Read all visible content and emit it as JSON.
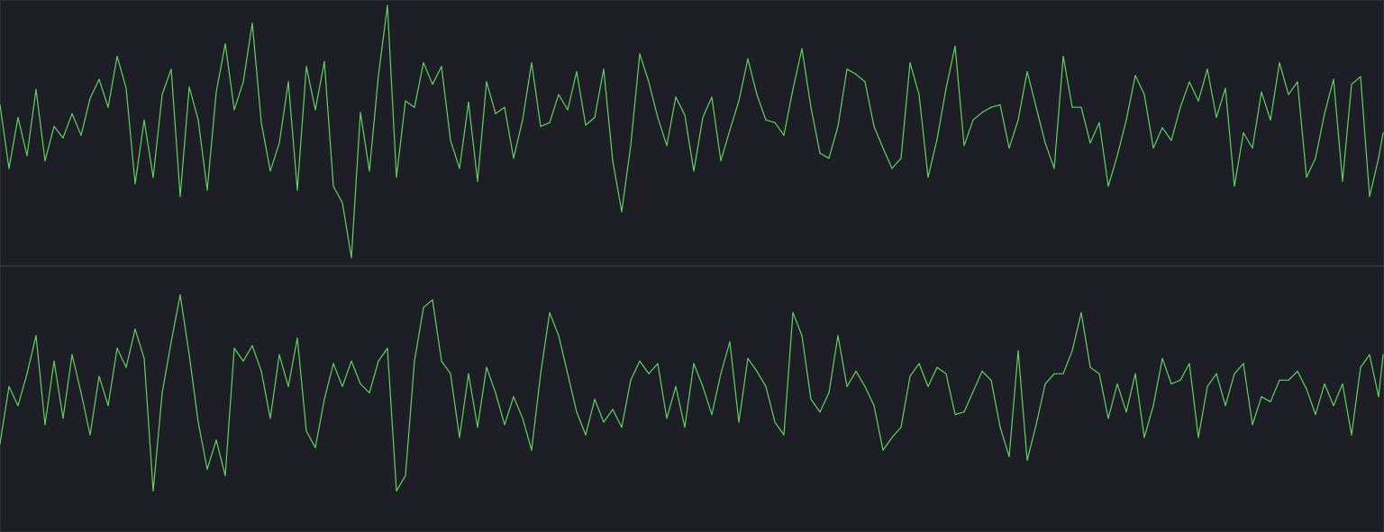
{
  "colors": {
    "background": "#1e1f26",
    "trace": "#5fd35f",
    "divider": "#3a3d35",
    "border": "#2c2e33"
  },
  "chart_data": [
    {
      "type": "line",
      "title": "",
      "xlabel": "",
      "ylabel": "",
      "grid": false,
      "legend": "none",
      "x": [
        0,
        10,
        20,
        30,
        40,
        50,
        60,
        70,
        80,
        90,
        100,
        110,
        120,
        130,
        140,
        150,
        160,
        170,
        180,
        190,
        200,
        210,
        220,
        230,
        240,
        250,
        260,
        270,
        280,
        290,
        300,
        310,
        320,
        330,
        340,
        350,
        360,
        370,
        380,
        390,
        400,
        410,
        420,
        430,
        440,
        450,
        460,
        470,
        480,
        490,
        500,
        510,
        520,
        530,
        540,
        550,
        560,
        570,
        580,
        590,
        600,
        610,
        620,
        630,
        640,
        650,
        660,
        670,
        680,
        690,
        700,
        710,
        720,
        730,
        740,
        750,
        760,
        770,
        780,
        790,
        800,
        810,
        820,
        830,
        840,
        850,
        860,
        870,
        880,
        890,
        900,
        910,
        920,
        930,
        940,
        950,
        960,
        970,
        980,
        990,
        1000,
        1010,
        1020,
        1030,
        1040,
        1050,
        1060,
        1070,
        1080,
        1090,
        1100,
        1110,
        1120,
        1130,
        1140,
        1150,
        1160,
        1170,
        1180,
        1190,
        1200,
        1210,
        1220,
        1230,
        1240,
        1250,
        1260,
        1270,
        1280,
        1290,
        1300,
        1310,
        1320,
        1330,
        1340,
        1350,
        1360,
        1370,
        1380,
        1390,
        1400,
        1410,
        1420,
        1430,
        1440,
        1450,
        1460,
        1470,
        1480,
        1490,
        1500,
        1510,
        1520,
        1530,
        1535
      ],
      "ylim": [
        -1,
        1
      ],
      "series": [
        {
          "values": [
            0.22,
            -0.28,
            0.12,
            -0.18,
            0.34,
            -0.22,
            0.05,
            -0.04,
            0.15,
            -0.02,
            0.27,
            0.42,
            0.2,
            0.6,
            0.35,
            -0.4,
            0.1,
            -0.35,
            0.3,
            0.5,
            -0.5,
            0.36,
            0.1,
            -0.45,
            0.32,
            0.7,
            0.18,
            0.4,
            0.86,
            0.08,
            -0.3,
            -0.08,
            0.4,
            -0.45,
            0.52,
            0.18,
            0.56,
            -0.42,
            -0.55,
            -0.98,
            0.16,
            -0.3,
            0.45,
            1.0,
            -0.35,
            0.25,
            0.2,
            0.55,
            0.38,
            0.52,
            -0.06,
            -0.28,
            0.24,
            -0.38,
            0.4,
            0.15,
            0.2,
            -0.2,
            0.1,
            0.55,
            0.05,
            0.08,
            0.3,
            0.18,
            0.48,
            0.06,
            0.12,
            0.5,
            -0.22,
            -0.62,
            -0.1,
            0.62,
            0.4,
            0.12,
            -0.1,
            0.28,
            0.14,
            -0.3,
            0.12,
            0.28,
            -0.22,
            0.02,
            0.25,
            0.58,
            0.3,
            0.1,
            0.08,
            -0.02,
            0.34,
            0.66,
            0.2,
            -0.16,
            -0.2,
            0.05,
            0.5,
            0.46,
            0.4,
            0.05,
            -0.12,
            -0.28,
            -0.2,
            0.55,
            0.3,
            -0.35,
            -0.05,
            0.35,
            0.68,
            -0.1,
            0.1,
            0.16,
            0.2,
            0.22,
            -0.12,
            0.1,
            0.48,
            0.2,
            -0.08,
            -0.28,
            0.6,
            0.2,
            0.2,
            -0.08,
            0.08,
            -0.42,
            -0.18,
            0.1,
            0.45,
            0.3,
            -0.12,
            0.04,
            -0.06,
            0.2,
            0.4,
            0.25,
            0.5,
            0.12,
            0.35,
            -0.42,
            0.0,
            -0.12,
            0.32,
            0.1,
            0.55,
            0.3,
            0.4,
            -0.35,
            -0.2,
            0.15,
            0.42,
            -0.38,
            0.38,
            0.44,
            -0.5,
            -0.2,
            0.0
          ]
        }
      ]
    },
    {
      "type": "line",
      "title": "",
      "xlabel": "",
      "ylabel": "",
      "grid": false,
      "legend": "none",
      "x": [
        0,
        10,
        20,
        30,
        40,
        50,
        60,
        70,
        80,
        90,
        100,
        110,
        120,
        130,
        140,
        150,
        160,
        170,
        180,
        190,
        200,
        210,
        220,
        230,
        240,
        250,
        260,
        270,
        280,
        290,
        300,
        310,
        320,
        330,
        340,
        350,
        360,
        370,
        380,
        390,
        400,
        410,
        420,
        430,
        440,
        450,
        460,
        470,
        480,
        490,
        500,
        510,
        520,
        530,
        540,
        550,
        560,
        570,
        580,
        590,
        600,
        610,
        620,
        630,
        640,
        650,
        660,
        670,
        680,
        690,
        700,
        710,
        720,
        730,
        740,
        750,
        760,
        770,
        780,
        790,
        800,
        810,
        820,
        830,
        840,
        850,
        860,
        870,
        880,
        890,
        900,
        910,
        920,
        930,
        940,
        950,
        960,
        970,
        980,
        990,
        1000,
        1010,
        1020,
        1030,
        1040,
        1050,
        1060,
        1070,
        1080,
        1090,
        1100,
        1110,
        1120,
        1130,
        1140,
        1150,
        1160,
        1170,
        1180,
        1190,
        1200,
        1210,
        1220,
        1230,
        1240,
        1250,
        1260,
        1270,
        1280,
        1290,
        1300,
        1310,
        1320,
        1330,
        1340,
        1350,
        1360,
        1370,
        1380,
        1390,
        1400,
        1410,
        1420,
        1430,
        1440,
        1450,
        1460,
        1470,
        1480,
        1490,
        1500,
        1510,
        1520,
        1530,
        1535
      ],
      "ylim": [
        -1,
        1
      ],
      "series": [
        {
          "values": [
            -0.35,
            0.1,
            -0.05,
            0.2,
            0.5,
            -0.2,
            0.3,
            -0.15,
            0.35,
            0.05,
            -0.28,
            0.18,
            -0.05,
            0.4,
            0.25,
            0.55,
            0.32,
            -0.72,
            0.05,
            0.45,
            0.82,
            0.35,
            -0.18,
            -0.55,
            -0.32,
            -0.6,
            0.4,
            0.3,
            0.42,
            0.22,
            -0.15,
            0.35,
            0.1,
            0.48,
            -0.25,
            -0.38,
            0.0,
            0.28,
            0.1,
            0.3,
            0.12,
            0.05,
            0.3,
            0.4,
            -0.72,
            -0.6,
            0.3,
            0.72,
            0.78,
            0.3,
            0.2,
            -0.3,
            0.2,
            -0.22,
            0.25,
            0.05,
            -0.2,
            0.02,
            -0.15,
            -0.4,
            0.2,
            0.68,
            0.5,
            0.2,
            -0.1,
            -0.28,
            0.0,
            -0.18,
            -0.08,
            -0.22,
            0.15,
            0.3,
            0.2,
            0.28,
            -0.15,
            0.1,
            -0.22,
            0.28,
            0.1,
            -0.12,
            0.2,
            0.45,
            -0.18,
            0.32,
            0.22,
            0.1,
            -0.18,
            -0.28,
            0.68,
            0.5,
            0.0,
            -0.1,
            0.05,
            0.5,
            0.1,
            0.22,
            0.1,
            -0.05,
            -0.4,
            -0.3,
            -0.22,
            0.18,
            0.28,
            0.1,
            0.25,
            0.2,
            -0.12,
            -0.1,
            0.06,
            0.22,
            0.15,
            -0.22,
            -0.45,
            0.38,
            -0.48,
            -0.2,
            0.12,
            0.2,
            0.2,
            0.38,
            0.68,
            0.25,
            0.2,
            -0.15,
            0.12,
            -0.1,
            0.2,
            -0.3,
            -0.05,
            0.32,
            0.12,
            0.15,
            0.28,
            -0.3,
            0.1,
            0.2,
            -0.05,
            0.2,
            0.28,
            -0.2,
            0.02,
            -0.02,
            0.15,
            0.15,
            0.22,
            0.08,
            -0.12,
            0.12,
            -0.05,
            0.12,
            -0.28,
            0.25,
            0.35,
            0.02,
            0.35
          ]
        }
      ]
    }
  ]
}
